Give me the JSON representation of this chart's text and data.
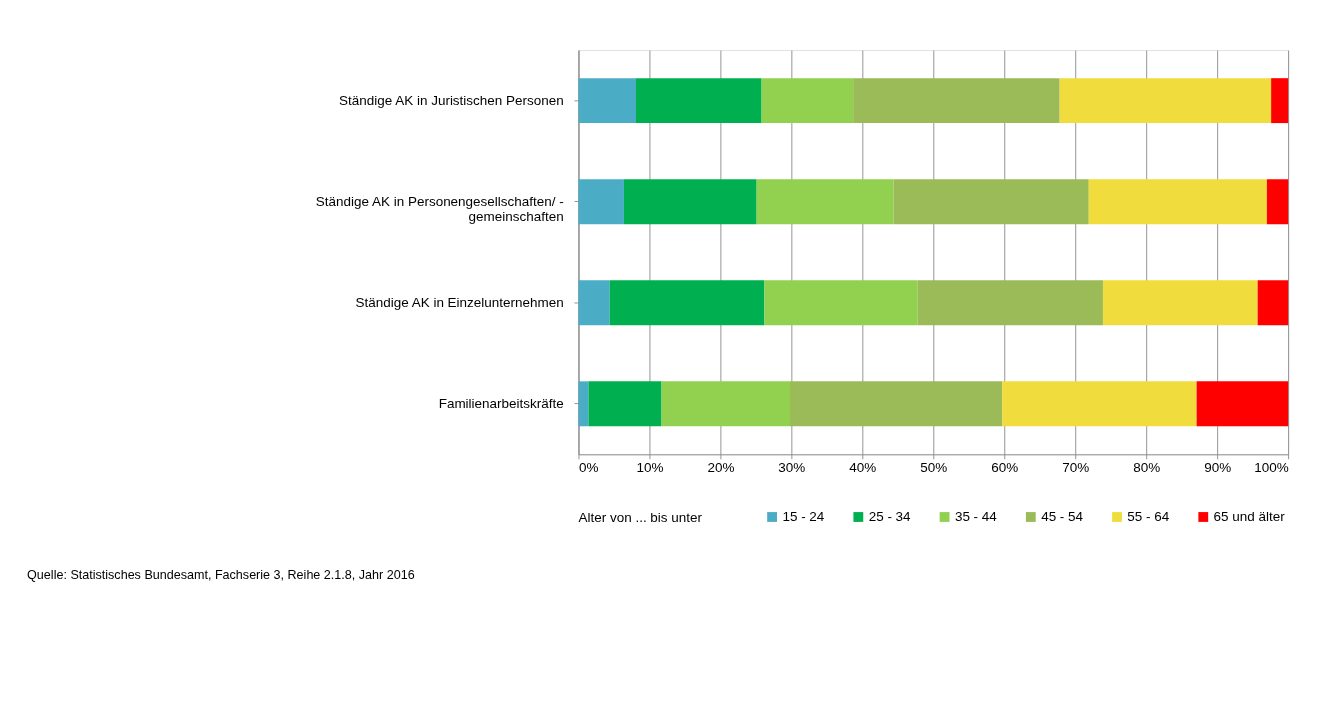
{
  "chart_data": {
    "type": "bar",
    "orientation": "horizontal",
    "stacked": true,
    "categories": [
      "Ständige AK in Juristischen Personen",
      "Ständige AK in Personengesellschaften/ -\ngemeinschaften",
      "Ständige AK in Einzelunternehmen",
      "Familienarbeitskräfte"
    ],
    "series": [
      {
        "name": "15 - 24",
        "color": "#4bacc6",
        "values": [
          8.1,
          6.4,
          4.4,
          1.4
        ]
      },
      {
        "name": "25 - 34",
        "color": "#00b050",
        "values": [
          17.7,
          18.7,
          21.8,
          10.3
        ]
      },
      {
        "name": "35 - 44",
        "color": "#92d050",
        "values": [
          12.9,
          19.3,
          21.6,
          18.1
        ]
      },
      {
        "name": "45 - 54",
        "color": "#9bbb59",
        "values": [
          29.1,
          27.5,
          26.1,
          29.9
        ]
      },
      {
        "name": "55 - 64",
        "color": "#f0dc3c",
        "values": [
          29.8,
          25.1,
          21.8,
          27.4
        ]
      },
      {
        "name": "65 und älter",
        "color": "#ff0000",
        "values": [
          2.4,
          3.0,
          4.3,
          12.9
        ]
      }
    ],
    "xlim": [
      0,
      100
    ],
    "xticks": [
      {
        "value": 0,
        "label": "0%"
      },
      {
        "value": 10,
        "label": "10%"
      },
      {
        "value": 20,
        "label": "20%"
      },
      {
        "value": 30,
        "label": "30%"
      },
      {
        "value": 40,
        "label": "40%"
      },
      {
        "value": 50,
        "label": "50%"
      },
      {
        "value": 60,
        "label": "60%"
      },
      {
        "value": 70,
        "label": "70%"
      },
      {
        "value": 80,
        "label": "80%"
      },
      {
        "value": 90,
        "label": "90%"
      },
      {
        "value": 100,
        "label": "100%"
      }
    ],
    "grid": "x",
    "legend": "bottom",
    "legend_title": "Alter von ... bis unter",
    "annotations": [
      "Quelle:  Statistisches Bundesamt, Fachserie 3, Reihe 2.1.8, Jahr 2016"
    ]
  }
}
